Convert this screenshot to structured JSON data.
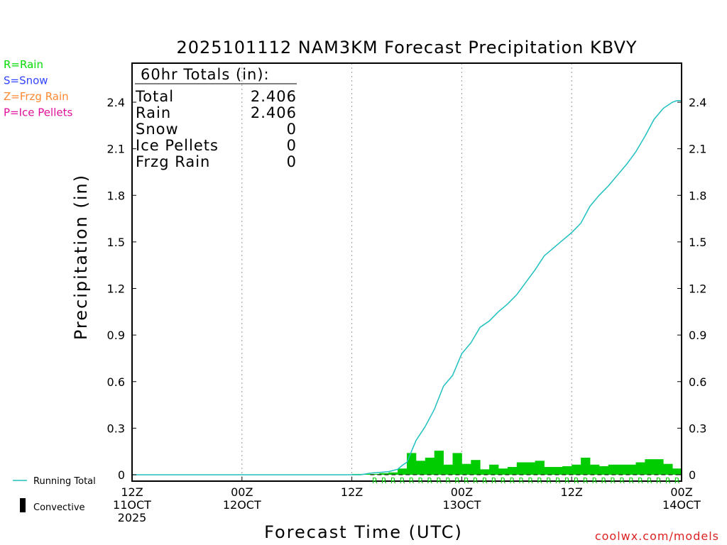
{
  "chart_data": {
    "type": "bar",
    "title": "2025101112 NAM3KM Forecast Precipitation KBVY",
    "xlabel": "Forecast Time (UTC)",
    "ylabel": "Precipitation (in)",
    "ylim": [
      0,
      2.6
    ],
    "xlim": [
      0,
      60
    ],
    "yticks": [
      "0",
      "0.3",
      "0.6",
      "0.9",
      "1.2",
      "1.5",
      "1.8",
      "2.1",
      "2.4"
    ],
    "xticks": [
      {
        "h": 0,
        "line1": "12Z",
        "line2": "11OCT",
        "line3": "2025"
      },
      {
        "h": 12,
        "line1": "00Z",
        "line2": "12OCT",
        "line3": ""
      },
      {
        "h": 24,
        "line1": "12Z",
        "line2": "",
        "line3": ""
      },
      {
        "h": 36,
        "line1": "00Z",
        "line2": "13OCT",
        "line3": ""
      },
      {
        "h": 48,
        "line1": "12Z",
        "line2": "",
        "line3": ""
      },
      {
        "h": 60,
        "line1": "00Z",
        "line2": "14OCT",
        "line3": ""
      }
    ],
    "grid": "vertical dotted at 12Z/00Z",
    "precip_type_markers": {
      "symbol": "R",
      "hours": [
        27,
        28,
        29,
        30,
        31,
        32,
        33,
        34,
        35,
        36,
        37,
        38,
        39,
        40,
        41,
        42,
        43,
        44,
        45,
        46,
        47,
        48,
        49,
        50,
        51,
        52,
        53,
        54,
        55,
        56,
        57,
        58,
        59,
        60
      ]
    },
    "series": [
      {
        "name": "Running Total",
        "type": "line",
        "color": "#20c0c0",
        "x": [
          0,
          25,
          26,
          27,
          28,
          29,
          29.5,
          30,
          30.5,
          31,
          32,
          33,
          34,
          35,
          36,
          37,
          38,
          39,
          40,
          41,
          42,
          43,
          44,
          45,
          46,
          47,
          48,
          49,
          50,
          51,
          52,
          53,
          54,
          55,
          56,
          57,
          58,
          59,
          59.5,
          60
        ],
        "y": [
          0,
          0,
          0.01,
          0.015,
          0.02,
          0.035,
          0.06,
          0.08,
          0.15,
          0.22,
          0.31,
          0.42,
          0.57,
          0.64,
          0.78,
          0.85,
          0.95,
          0.99,
          1.05,
          1.1,
          1.16,
          1.24,
          1.32,
          1.41,
          1.46,
          1.51,
          1.56,
          1.62,
          1.73,
          1.8,
          1.86,
          1.93,
          2.0,
          2.08,
          2.18,
          2.29,
          2.36,
          2.4,
          2.41,
          2.41
        ]
      },
      {
        "name": "Hourly Rain",
        "type": "bar",
        "color": "#00cc00",
        "x": [
          25,
          26,
          27,
          28,
          29,
          30,
          31,
          32,
          33,
          34,
          35,
          36,
          37,
          38,
          39,
          40,
          41,
          42,
          43,
          44,
          45,
          46,
          47,
          48,
          49,
          50,
          51,
          52,
          53,
          54,
          55,
          56,
          57,
          58,
          59,
          60
        ],
        "y": [
          0.005,
          0.005,
          0.005,
          0.01,
          0.015,
          0.04,
          0.14,
          0.09,
          0.11,
          0.155,
          0.065,
          0.14,
          0.07,
          0.095,
          0.035,
          0.065,
          0.04,
          0.05,
          0.08,
          0.08,
          0.09,
          0.05,
          0.05,
          0.055,
          0.065,
          0.11,
          0.065,
          0.055,
          0.065,
          0.065,
          0.065,
          0.08,
          0.1,
          0.1,
          0.07,
          0.04
        ]
      }
    ],
    "totals_box": {
      "heading": "60hr Totals (in):",
      "rows": [
        {
          "label": "Total",
          "value": "2.406"
        },
        {
          "label": "Rain",
          "value": "2.406"
        },
        {
          "label": "Snow",
          "value": "0"
        },
        {
          "label": "Ice Pellets",
          "value": "0"
        },
        {
          "label": "Frzg Rain",
          "value": "0"
        }
      ]
    },
    "type_key": [
      {
        "text": "R=Rain",
        "color": "#00dd00"
      },
      {
        "text": "S=Snow",
        "color": "#3344ff"
      },
      {
        "text": "Z=Frzg Rain",
        "color": "#ff8833"
      },
      {
        "text": "P=Ice Pellets",
        "color": "#e0109a"
      }
    ],
    "legend": {
      "position": "bottom-left",
      "running_total": "Running Total",
      "convective": "Convective"
    },
    "credit": "coolwx.com/models"
  }
}
